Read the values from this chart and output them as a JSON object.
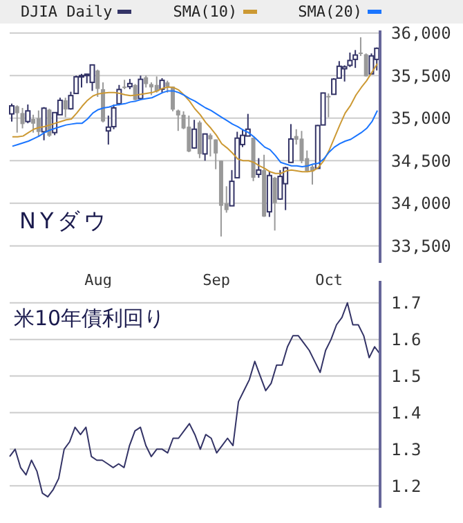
{
  "chart_data": [
    {
      "type": "candlestick",
      "title": "NYダウ",
      "legend": "top",
      "grid": "y",
      "marker": "none",
      "line_style": "solid",
      "categories": [
        null,
        null,
        null,
        null,
        null,
        null,
        null,
        null,
        null,
        null,
        null,
        null,
        null,
        null,
        null,
        null,
        "Aug",
        null,
        null,
        null,
        null,
        null,
        null,
        null,
        null,
        null,
        null,
        null,
        null,
        null,
        null,
        null,
        null,
        null,
        null,
        null,
        null,
        null,
        "Sep",
        null,
        null,
        null,
        null,
        null,
        null,
        null,
        null,
        null,
        null,
        null,
        null,
        null,
        null,
        null,
        null,
        null,
        null,
        null,
        null,
        "Oct",
        null,
        null,
        null,
        null,
        null,
        null,
        null,
        null,
        null
      ],
      "ylim": [
        33300,
        36030
      ],
      "yticks": [
        {
          "value": 33500,
          "label": "33,500"
        },
        {
          "value": 34000,
          "label": "34,000"
        },
        {
          "value": 34500,
          "label": "34,500"
        },
        {
          "value": 35000,
          "label": "35,000"
        },
        {
          "value": 35500,
          "label": "35,500"
        },
        {
          "value": 36000,
          "label": "36,000"
        }
      ],
      "series": [
        {
          "type": "candlestick",
          "name": "DJIA Daily",
          "color": "#333366",
          "colors": [
            "#333366",
            "#999999",
            "#999999",
            "#333366",
            "#999999",
            "#999999",
            "#333366",
            "#999999",
            "#333366",
            "#333366",
            "#999999",
            "#333366",
            "#333366",
            "#333366",
            "#333366",
            "#333366",
            "#999999",
            "#999999",
            "#333366",
            "#333366",
            "#333366",
            "#999999",
            "#333366",
            "#999999",
            "#333366",
            "#999999",
            "#999999",
            "#999999",
            "#333366",
            "#999999",
            "#999999",
            "#999999",
            "#999999",
            "#999999",
            "#333366",
            "#999999",
            "#333366",
            "#999999",
            "#999999",
            "#999999",
            "#999999",
            "#333366",
            "#333366",
            "#333366",
            "#333366",
            "#999999",
            "#333366",
            "#999999",
            "#333366",
            "#999999",
            "#333366",
            "#333366",
            "#333366",
            "#999999",
            "#999999",
            "#999999",
            "#999999",
            "#333366",
            "#333366",
            "#999999",
            "#333366",
            "#333366",
            "#333366",
            "#333366",
            "#333366",
            "#999999",
            "#999999",
            "#333366",
            "#333366"
          ],
          "ohlc": [
            [
              35050,
              35170,
              34960,
              35144
            ],
            [
              35140,
              35150,
              34830,
              35058
            ],
            [
              35060,
              35120,
              34880,
              34930
            ],
            [
              34960,
              35160,
              34940,
              35085
            ],
            [
              34990,
              35040,
              34830,
              34935
            ],
            [
              35000,
              35090,
              34780,
              34838
            ],
            [
              34840,
              35130,
              34740,
              35117
            ],
            [
              35100,
              35110,
              34780,
              34793
            ],
            [
              34830,
              35070,
              34800,
              35065
            ],
            [
              35040,
              35240,
              35040,
              35209
            ],
            [
              35210,
              35240,
              35010,
              35102
            ],
            [
              35110,
              35310,
              35100,
              35265
            ],
            [
              35290,
              35500,
              35290,
              35485
            ],
            [
              35490,
              35520,
              35360,
              35500
            ],
            [
              35510,
              35520,
              35410,
              35516
            ],
            [
              35420,
              35630,
              35320,
              35625
            ],
            [
              35560,
              35570,
              35250,
              35343
            ],
            [
              35340,
              35420,
              34950,
              34961
            ],
            [
              34850,
              35030,
              34690,
              34894
            ],
            [
              34900,
              35160,
              34870,
              35120
            ],
            [
              35170,
              35390,
              35150,
              35336
            ],
            [
              35370,
              35450,
              35340,
              35367
            ],
            [
              35370,
              35460,
              35340,
              35406
            ],
            [
              35390,
              35400,
              35210,
              35214
            ],
            [
              35230,
              35500,
              35210,
              35456
            ],
            [
              35480,
              35500,
              35360,
              35400
            ],
            [
              35400,
              35420,
              35270,
              35361
            ],
            [
              35390,
              35490,
              35300,
              35313
            ],
            [
              35340,
              35470,
              35300,
              35444
            ],
            [
              35420,
              35440,
              35300,
              35369
            ],
            [
              35370,
              35370,
              35080,
              35100
            ],
            [
              35090,
              35100,
              34850,
              35032
            ],
            [
              35040,
              35080,
              34870,
              34879
            ],
            [
              34900,
              35030,
              34600,
              34608
            ],
            [
              34650,
              34980,
              34640,
              34870
            ],
            [
              34950,
              34970,
              34530,
              34578
            ],
            [
              34580,
              34820,
              34500,
              34814
            ],
            [
              34800,
              34820,
              34550,
              34751
            ],
            [
              34750,
              34750,
              34400,
              34585
            ],
            [
              34500,
              34500,
              33610,
              33970
            ],
            [
              34000,
              34200,
              33890,
              33920
            ],
            [
              33970,
              34390,
              33970,
              34258
            ],
            [
              34300,
              34840,
              34300,
              34765
            ],
            [
              34690,
              34870,
              34660,
              34798
            ],
            [
              34790,
              35050,
              34790,
              34870
            ],
            [
              34770,
              34770,
              34260,
              34300
            ],
            [
              34340,
              34530,
              34300,
              34391
            ],
            [
              34390,
              34570,
              33840,
              33844
            ],
            [
              33900,
              34380,
              33840,
              34326
            ],
            [
              34300,
              34310,
              33680,
              34002
            ],
            [
              34050,
              34390,
              34040,
              34315
            ],
            [
              34230,
              34430,
              33920,
              34417
            ],
            [
              34480,
              34930,
              34480,
              34755
            ],
            [
              34790,
              34870,
              34690,
              34746
            ],
            [
              34760,
              34850,
              34470,
              34496
            ],
            [
              34530,
              34620,
              34370,
              34378
            ],
            [
              34430,
              34450,
              34220,
              34377
            ],
            [
              34410,
              34920,
              34410,
              34913
            ],
            [
              34920,
              35300,
              34920,
              35295
            ],
            [
              35260,
              35290,
              35010,
              35259
            ],
            [
              35280,
              35470,
              35280,
              35458
            ],
            [
              35470,
              35670,
              35470,
              35609
            ],
            [
              35580,
              35620,
              35430,
              35603
            ],
            [
              35620,
              35770,
              35600,
              35677
            ],
            [
              35690,
              35800,
              35590,
              35741
            ],
            [
              35770,
              35950,
              35730,
              35756
            ],
            [
              35750,
              35760,
              35490,
              35491
            ],
            [
              35520,
              35760,
              35520,
              35731
            ],
            [
              35690,
              35830,
              35560,
              35820
            ]
          ]
        },
        {
          "type": "line",
          "name": "SMA(10)",
          "color": "#cc9933",
          "values": [
            34780,
            34780,
            34790,
            34830,
            34870,
            34890,
            34900,
            34920,
            34940,
            34960,
            34980,
            34990,
            35060,
            35140,
            35210,
            35260,
            35285,
            35295,
            35300,
            35300,
            35290,
            35275,
            35265,
            35270,
            35280,
            35290,
            35300,
            35320,
            35350,
            35365,
            35360,
            35330,
            35270,
            35200,
            35110,
            35040,
            34950,
            34880,
            34800,
            34700,
            34650,
            34590,
            34520,
            34500,
            34500,
            34480,
            34440,
            34410,
            34370,
            34350,
            34350,
            34380,
            34390,
            34380,
            34370,
            34370,
            34380,
            34420,
            34500,
            34620,
            34770,
            34920,
            35060,
            35150,
            35270,
            35360,
            35440,
            35540,
            35640
          ]
        },
        {
          "type": "line",
          "name": "SMA(20)",
          "color": "#1a75ff",
          "values": [
            34670,
            34690,
            34710,
            34730,
            34760,
            34790,
            34830,
            34860,
            34880,
            34900,
            34920,
            34930,
            34940,
            34940,
            34990,
            35060,
            35100,
            35120,
            35130,
            35150,
            35160,
            35170,
            35190,
            35200,
            35220,
            35230,
            35240,
            35270,
            35300,
            35320,
            35320,
            35300,
            35270,
            35230,
            35200,
            35160,
            35120,
            35090,
            35050,
            35010,
            34970,
            34930,
            34900,
            34860,
            34830,
            34780,
            34720,
            34660,
            34630,
            34560,
            34480,
            34460,
            34440,
            34440,
            34430,
            34440,
            34460,
            34470,
            34520,
            34600,
            34660,
            34700,
            34730,
            34750,
            34790,
            34830,
            34880,
            34960,
            35090
          ]
        }
      ]
    },
    {
      "type": "line",
      "title": "米10年債利回り",
      "grid": "y",
      "marker": "none",
      "line_style": "solid",
      "tick_labels": "y",
      "categories": [
        null,
        null,
        null,
        null,
        null,
        null,
        null,
        null,
        null,
        null,
        null,
        null,
        null,
        null,
        null,
        null,
        null,
        null,
        null,
        null,
        null,
        null,
        null,
        null,
        null,
        null,
        null,
        null,
        null,
        null,
        null,
        null,
        null,
        null,
        null,
        null,
        null,
        null,
        null,
        null,
        null,
        null,
        null,
        null,
        null,
        null,
        null,
        null,
        null,
        null,
        null,
        null,
        null,
        null,
        null,
        null,
        null,
        null,
        null,
        null,
        null,
        null,
        null,
        null,
        null,
        null,
        null,
        null,
        null
      ],
      "ylim": [
        1.14,
        1.76
      ],
      "yticks": [
        1.2,
        1.3,
        1.4,
        1.5,
        1.6,
        1.7
      ],
      "series": [
        {
          "color": "#333366",
          "values": [
            1.28,
            1.3,
            1.25,
            1.23,
            1.27,
            1.24,
            1.18,
            1.17,
            1.19,
            1.22,
            1.3,
            1.32,
            1.36,
            1.34,
            1.36,
            1.28,
            1.27,
            1.27,
            1.26,
            1.25,
            1.26,
            1.25,
            1.31,
            1.35,
            1.36,
            1.31,
            1.28,
            1.3,
            1.3,
            1.29,
            1.33,
            1.33,
            1.35,
            1.37,
            1.34,
            1.3,
            1.34,
            1.33,
            1.29,
            1.31,
            1.33,
            1.31,
            1.43,
            1.46,
            1.49,
            1.54,
            1.5,
            1.46,
            1.48,
            1.53,
            1.53,
            1.58,
            1.61,
            1.61,
            1.59,
            1.57,
            1.54,
            1.51,
            1.57,
            1.6,
            1.64,
            1.66,
            1.7,
            1.64,
            1.64,
            1.61,
            1.55,
            1.58,
            1.56
          ]
        }
      ]
    }
  ]
}
